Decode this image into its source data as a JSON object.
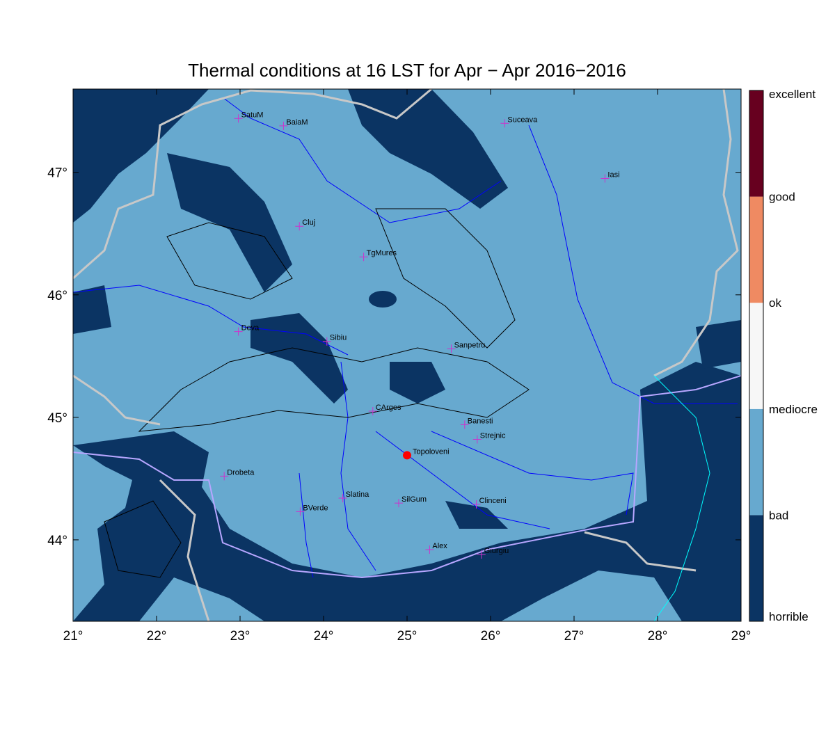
{
  "title": "Thermal conditions at 16 LST for Apr − Apr  2016−2016",
  "map": {
    "xlim": [
      21,
      29
    ],
    "ylim": [
      43.335,
      47.68
    ],
    "xticks": [
      {
        "value": 21,
        "label": "21°"
      },
      {
        "value": 22,
        "label": "22°"
      },
      {
        "value": 23,
        "label": "23°"
      },
      {
        "value": 24,
        "label": "24°"
      },
      {
        "value": 25,
        "label": "25°"
      },
      {
        "value": 26,
        "label": "26°"
      },
      {
        "value": 27,
        "label": "27°"
      },
      {
        "value": 28,
        "label": "28°"
      },
      {
        "value": 29,
        "label": "29°"
      }
    ],
    "yticks": [
      {
        "value": 44,
        "label": "44°"
      },
      {
        "value": 45,
        "label": "45°"
      },
      {
        "value": 46,
        "label": "46°"
      },
      {
        "value": 47,
        "label": "47°"
      }
    ],
    "cities": [
      {
        "name": "SatuM",
        "lon": 22.98,
        "lat": 47.44
      },
      {
        "name": "BaiaM",
        "lon": 23.52,
        "lat": 47.38
      },
      {
        "name": "Suceava",
        "lon": 26.17,
        "lat": 47.4
      },
      {
        "name": "Iasi",
        "lon": 27.37,
        "lat": 46.95
      },
      {
        "name": "Cluj",
        "lon": 23.71,
        "lat": 46.56
      },
      {
        "name": "TgMures",
        "lon": 24.48,
        "lat": 46.31
      },
      {
        "name": "Deva",
        "lon": 22.98,
        "lat": 45.7
      },
      {
        "name": "Sibiu",
        "lon": 24.04,
        "lat": 45.62
      },
      {
        "name": "Sanpetru",
        "lon": 25.53,
        "lat": 45.56
      },
      {
        "name": "CArges",
        "lon": 24.59,
        "lat": 45.05
      },
      {
        "name": "Banesti",
        "lon": 25.69,
        "lat": 44.94
      },
      {
        "name": "Strejnic",
        "lon": 25.84,
        "lat": 44.82
      },
      {
        "name": "Drobeta",
        "lon": 22.81,
        "lat": 44.52
      },
      {
        "name": "Slatina",
        "lon": 24.23,
        "lat": 44.34
      },
      {
        "name": "SilGum",
        "lon": 24.9,
        "lat": 44.3
      },
      {
        "name": "BVerde",
        "lon": 23.72,
        "lat": 44.23
      },
      {
        "name": "Clinceni",
        "lon": 25.83,
        "lat": 44.29
      },
      {
        "name": "Alex",
        "lon": 25.27,
        "lat": 43.92
      },
      {
        "name": "Giurgiu",
        "lon": 25.89,
        "lat": 43.88
      }
    ],
    "marker": {
      "name": "Topoloveni",
      "lon": 25.0,
      "lat": 44.69,
      "color": "#ff0000"
    }
  },
  "colorbar": {
    "labels": [
      "horrible",
      "bad",
      "mediocre",
      "ok",
      "good",
      "excellent"
    ],
    "colors": [
      "#0b3463",
      "#67a9cf",
      "#f7f7f7",
      "#ef8a62",
      "#67001f"
    ]
  }
}
